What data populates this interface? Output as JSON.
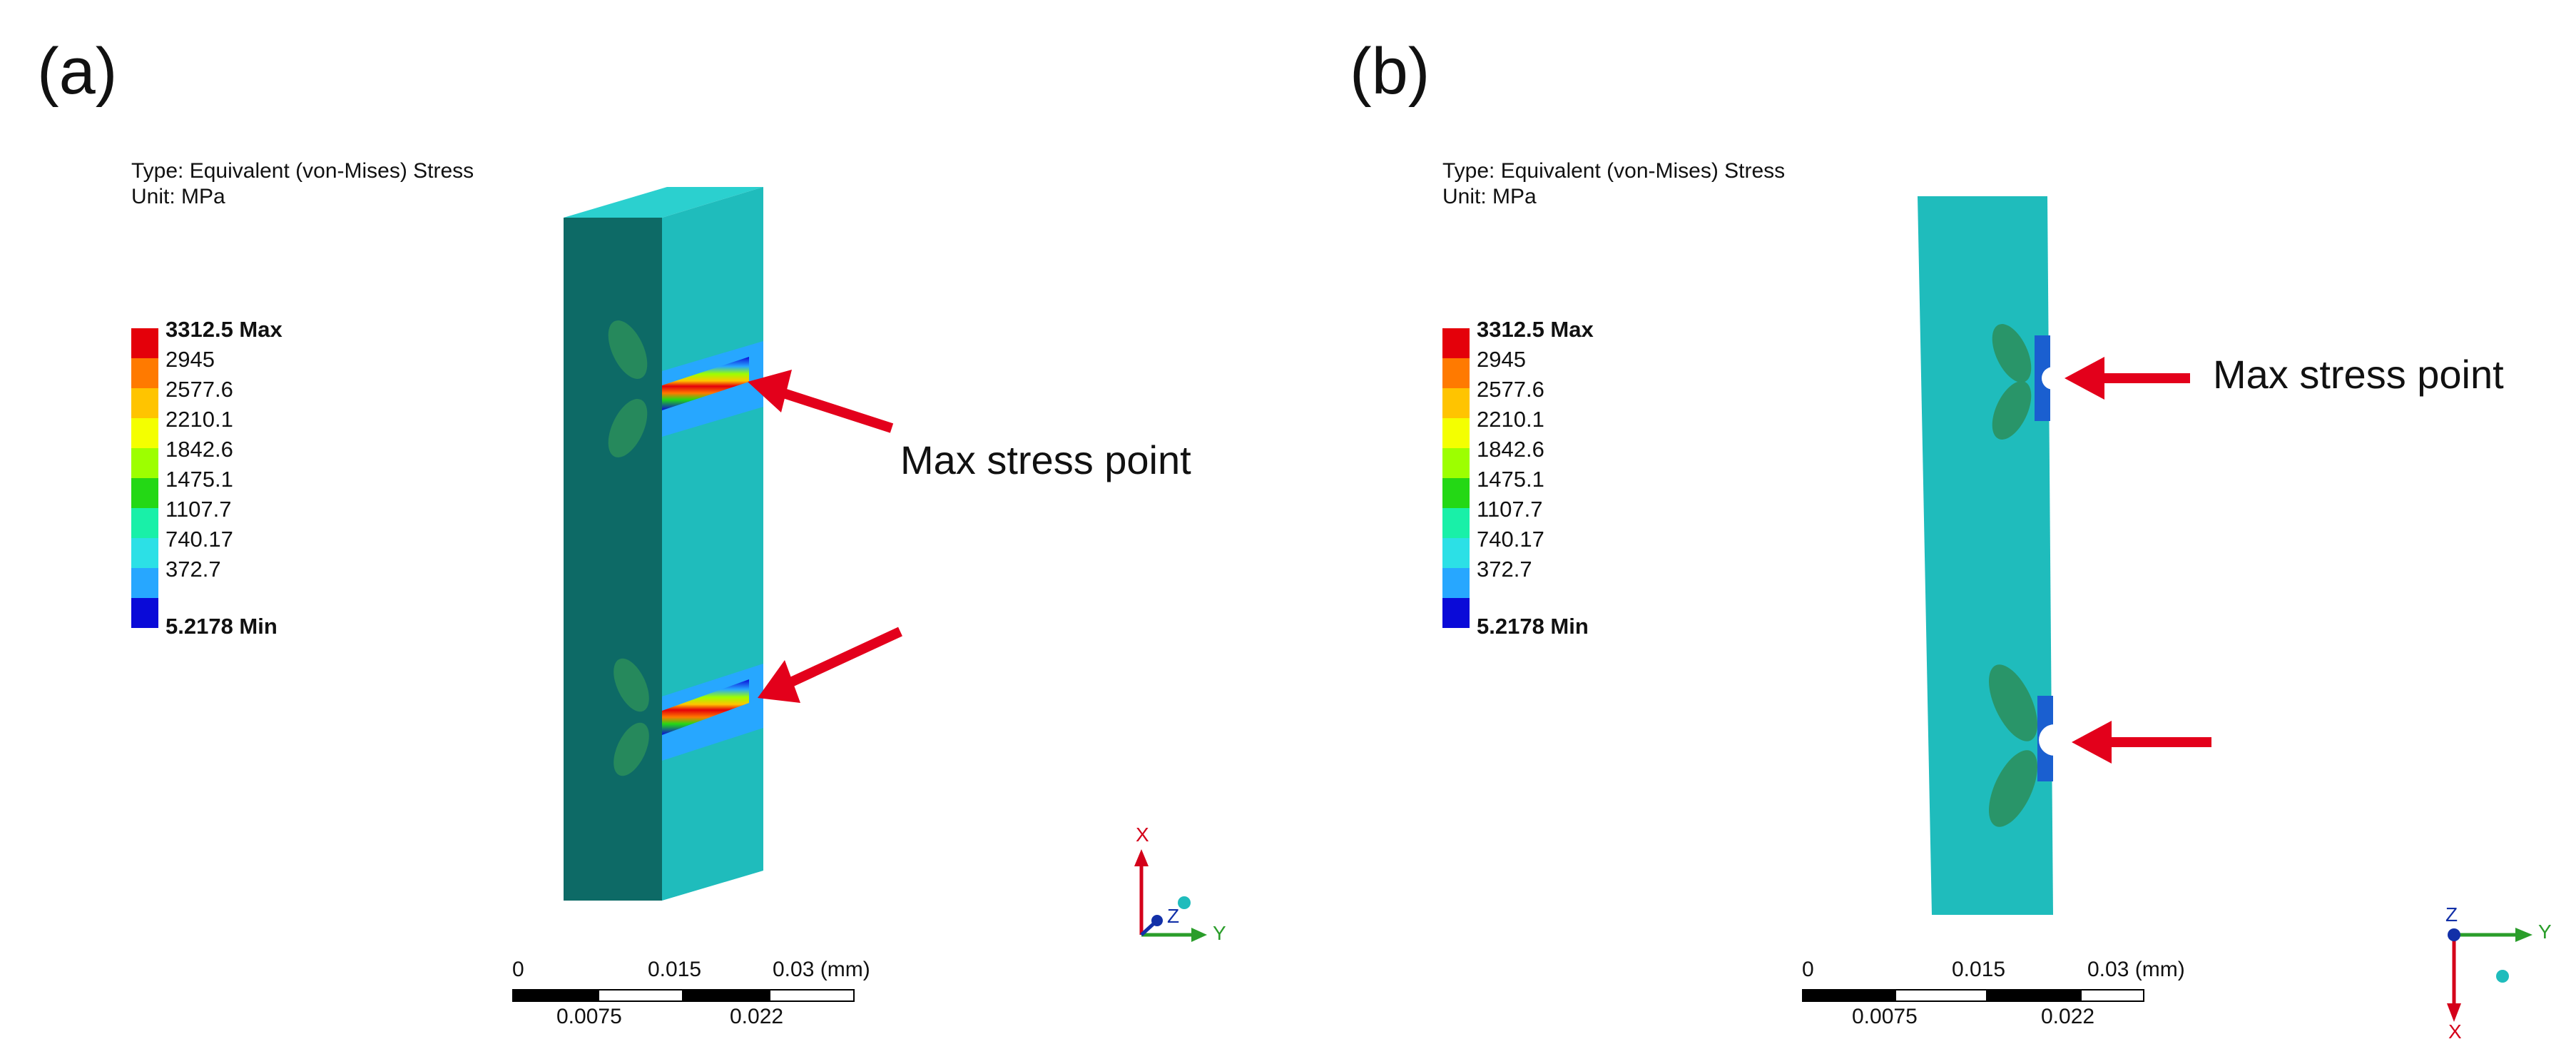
{
  "panels": [
    {
      "label": "(a)",
      "result_type": "Type: Equivalent (von-Mises) Stress",
      "unit": "Unit: MPa",
      "legend": [
        "3312.5 Max",
        "2945",
        "2577.6",
        "2210.1",
        "1842.6",
        "1475.1",
        "1107.7",
        "740.17",
        "372.7",
        "5.2178 Min"
      ],
      "annotation": "Max stress point",
      "scale": {
        "ticks_top": [
          "0",
          "0.015",
          "0.03 (mm)"
        ],
        "ticks_bottom": [
          "0.0075",
          "0.022"
        ]
      },
      "triad": {
        "x": "X",
        "y": "Y",
        "z": "Z"
      }
    },
    {
      "label": "(b)",
      "result_type": "Type: Equivalent (von-Mises) Stress",
      "unit": "Unit: MPa",
      "legend": [
        "3312.5 Max",
        "2945",
        "2577.6",
        "2210.1",
        "1842.6",
        "1475.1",
        "1107.7",
        "740.17",
        "372.7",
        "5.2178 Min"
      ],
      "annotation": "Max stress point",
      "scale": {
        "ticks_top": [
          "0",
          "0.015",
          "0.03 (mm)"
        ],
        "ticks_bottom": [
          "0.0075",
          "0.022"
        ]
      },
      "triad": {
        "x": "X",
        "y": "Y",
        "z": "Z"
      }
    }
  ],
  "colors": {
    "legend_bands": [
      "#e4000a",
      "#ff7a00",
      "#ffc400",
      "#f4ff00",
      "#9dff00",
      "#24d815",
      "#19f0a8",
      "#2ce0e6",
      "#27a7ff",
      "#0a0ad8"
    ],
    "arrow": "#e3001b",
    "model_face": "#1fbcbc",
    "model_side": "#0d6a66",
    "axis_x": "#d4001a",
    "axis_y": "#2a9d2a",
    "axis_z": "#1230a8"
  }
}
